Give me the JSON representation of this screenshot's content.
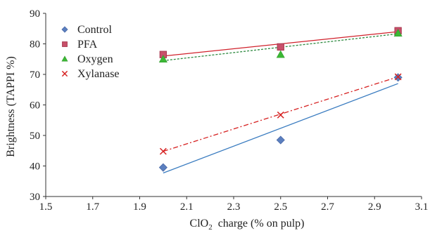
{
  "chart_data": {
    "type": "scatter",
    "xlabel_main": "ClO",
    "xlabel_sub": "2",
    "xlabel_rest": "  charge (% on pulp)",
    "ylabel": "Brightness (TAPPI %)",
    "xlim": [
      1.5,
      3.1
    ],
    "ylim": [
      30,
      90
    ],
    "xticks": [
      "1.5",
      "1.7",
      "1.9",
      "2.1",
      "2.3",
      "2.5",
      "2.7",
      "2.9",
      "3.1"
    ],
    "xtick_values": [
      1.5,
      1.7,
      1.9,
      2.1,
      2.3,
      2.5,
      2.7,
      2.9,
      3.1
    ],
    "yticks": [
      "30",
      "40",
      "50",
      "60",
      "70",
      "80",
      "90"
    ],
    "ytick_values": [
      30,
      40,
      50,
      60,
      70,
      80,
      90
    ],
    "grid": false,
    "legend_position": "top-left",
    "series": [
      {
        "name": "Control",
        "marker": "diamond",
        "color": "#5b7fbf",
        "line_color": "#3a7cc0",
        "line_style": "solid",
        "x": [
          2.0,
          2.5,
          3.0
        ],
        "y": [
          39.5,
          48.5,
          69.0
        ],
        "trend": [
          [
            2.0,
            37.7
          ],
          [
            3.0,
            67.0
          ]
        ]
      },
      {
        "name": "PFA",
        "marker": "square",
        "color": "#c8506a",
        "line_color": "#d0202a",
        "line_style": "solid",
        "x": [
          2.0,
          2.5,
          3.0
        ],
        "y": [
          76.5,
          79.0,
          84.3
        ],
        "trend": [
          [
            2.0,
            76.0
          ],
          [
            3.0,
            84.0
          ]
        ]
      },
      {
        "name": "Oxygen",
        "marker": "triangle",
        "color": "#3cb835",
        "line_color": "#2e8a40",
        "line_style": "dashed",
        "x": [
          2.0,
          2.5,
          3.0
        ],
        "y": [
          75.0,
          76.5,
          83.5
        ],
        "trend": [
          [
            2.0,
            74.5
          ],
          [
            3.0,
            83.3
          ]
        ]
      },
      {
        "name": "Xylanase",
        "marker": "x",
        "color": "#d62020",
        "line_color": "#d62020",
        "line_style": "dashdot",
        "x": [
          2.0,
          2.5,
          3.0
        ],
        "y": [
          44.8,
          56.7,
          69.2
        ],
        "trend": [
          [
            2.0,
            44.8
          ],
          [
            3.0,
            69.2
          ]
        ]
      }
    ]
  }
}
